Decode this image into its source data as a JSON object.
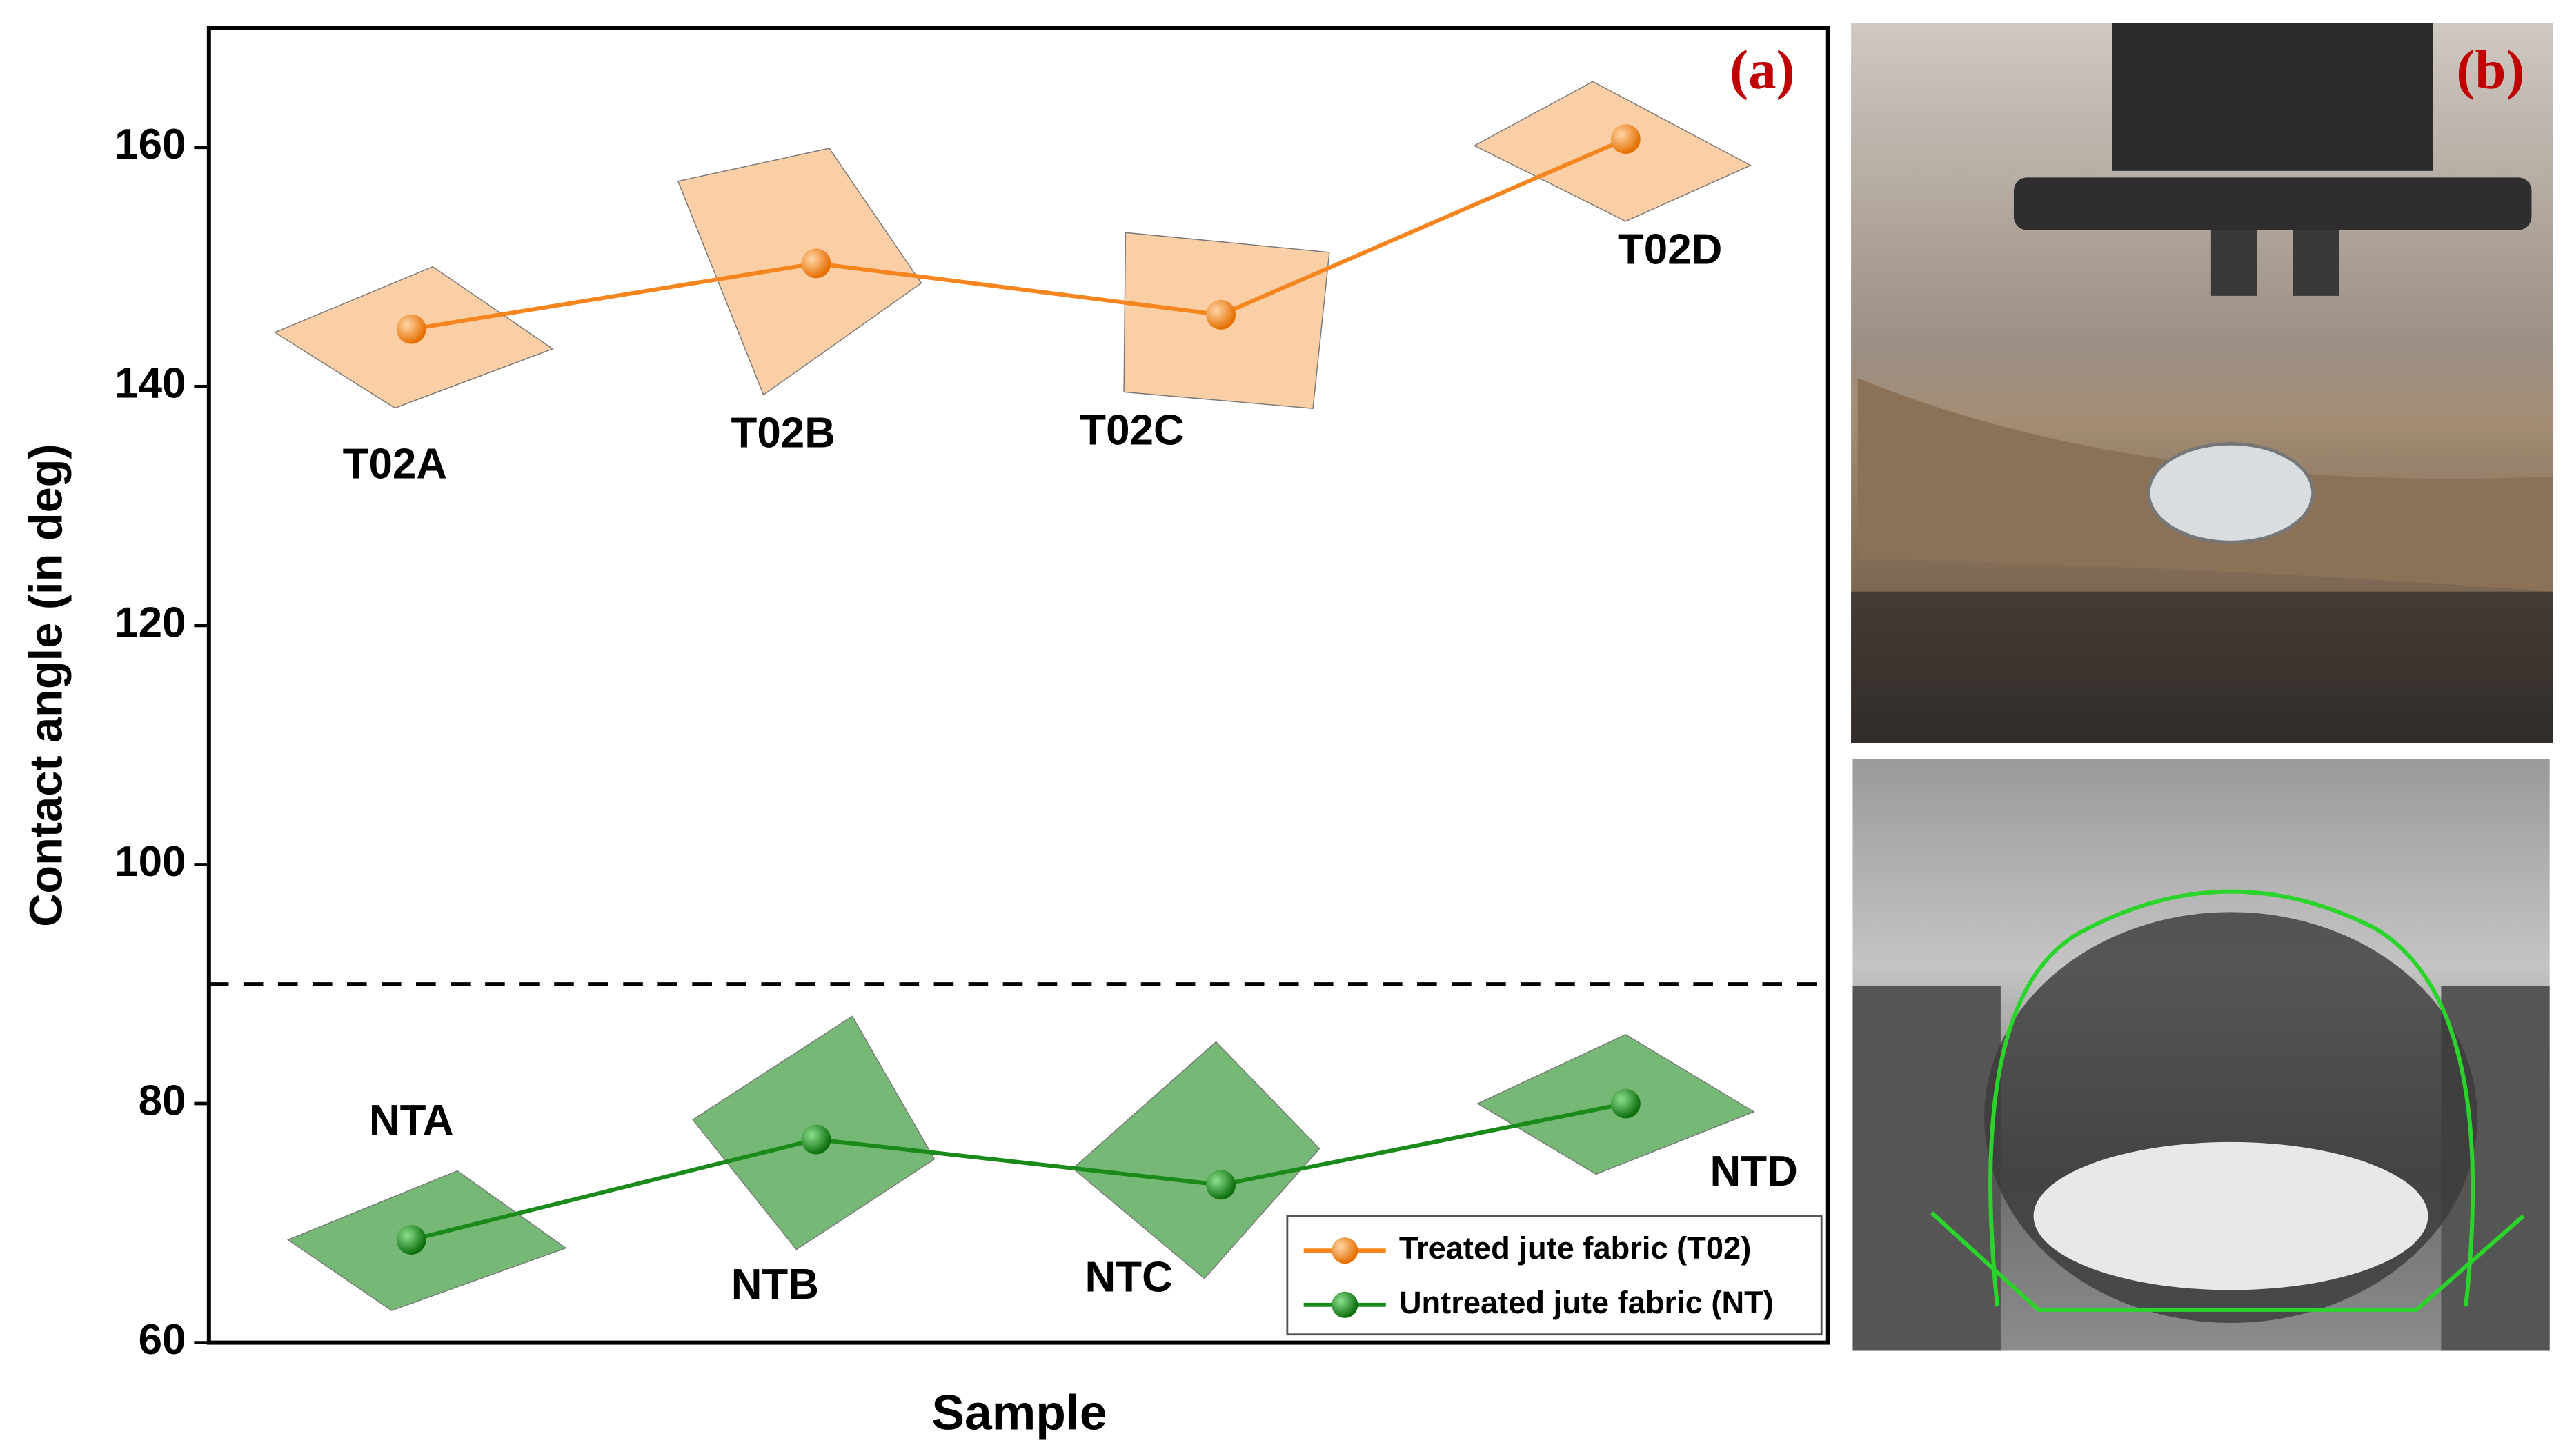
{
  "chart_data": {
    "type": "line",
    "panel_label": "(a)",
    "y_label": "Contact angle (in deg)",
    "x_label": "Sample",
    "categories": [
      null,
      null,
      null,
      null
    ],
    "ylim": [
      60,
      170
    ],
    "yticks": [
      60,
      80,
      100,
      120,
      140,
      160
    ],
    "reference_line": 90,
    "legend": "lower right",
    "series": [
      {
        "name": "Treated jute fabric (T02)",
        "color": "#f5861f",
        "values": [
          144.8,
          150.3,
          146,
          160.7
        ],
        "point_labels": [
          "T02A",
          "T02B",
          "T02C",
          "T02D"
        ]
      },
      {
        "name": "Untreated jute fabric (NT)",
        "color": "#1a8a1a",
        "values": [
          68.6,
          77,
          73.2,
          80
        ],
        "point_labels": [
          "NTA",
          "NTB",
          "NTC",
          "NTD"
        ]
      }
    ]
  },
  "photo_panel": {
    "panel_label": "(b)"
  }
}
